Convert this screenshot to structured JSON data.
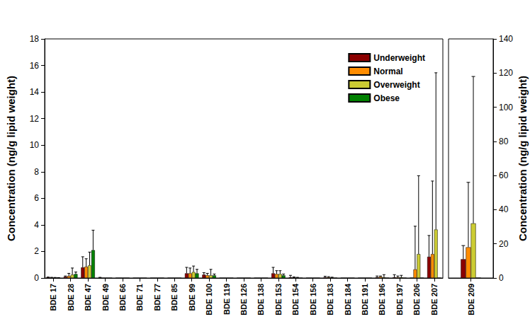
{
  "chart_data": [
    {
      "type": "bar",
      "ylabel": "Concentration (ng/g lipid weight)",
      "categories": [
        "BDE 17",
        "BDE 28",
        "BDE 47",
        "BDE 49",
        "BDE 66",
        "BDE 71",
        "BDE 77",
        "BDE 85",
        "BDE 99",
        "BDE 100",
        "BDE 119",
        "BDE 126",
        "BDE 138",
        "BDE 153",
        "BDE 154",
        "BDE 156",
        "BDE 183",
        "BDE 184",
        "BDE 191",
        "BDE 196",
        "BDE 197",
        "BDE 206",
        "BDE 207"
      ],
      "series": [
        {
          "name": "Underweight",
          "color": "#8B0000",
          "values": [
            0.05,
            0.1,
            0.8,
            0.03,
            0,
            0,
            0,
            0,
            0.35,
            0.25,
            0,
            0,
            0,
            0.35,
            0.05,
            0,
            0.05,
            0,
            0,
            0.05,
            0.05,
            0,
            1.6
          ],
          "errors": [
            0.02,
            0.05,
            0.8,
            0.02,
            0,
            0,
            0,
            0,
            0.45,
            0.15,
            0,
            0,
            0,
            0.45,
            0.15,
            0,
            0.08,
            0,
            0,
            0.1,
            0.2,
            0,
            1.6
          ]
        },
        {
          "name": "Normal",
          "color": "#FF8C00",
          "values": [
            0.03,
            0.15,
            0.85,
            0,
            0,
            0,
            0,
            0,
            0.35,
            0.2,
            0,
            0,
            0,
            0.3,
            0.03,
            0,
            0.05,
            0,
            0,
            0.1,
            0.05,
            0.65,
            1.8
          ],
          "errors": [
            0.02,
            0.2,
            0.6,
            0,
            0,
            0,
            0,
            0,
            0.4,
            0.15,
            0,
            0,
            0,
            0.25,
            0.05,
            0,
            0.05,
            0,
            0,
            0.05,
            0.1,
            3.25,
            5.5
          ]
        },
        {
          "name": "Overweight",
          "color": "#CCCC33",
          "values": [
            0.02,
            0.25,
            0.95,
            0,
            0,
            0,
            0,
            0,
            0.45,
            0.2,
            0,
            0,
            0,
            0.3,
            0.02,
            0,
            0.03,
            0,
            0,
            0.05,
            0.05,
            1.8,
            3.65
          ],
          "errors": [
            0.02,
            0.5,
            1.0,
            0,
            0,
            0,
            0,
            0,
            0.45,
            0.45,
            0,
            0,
            0,
            0.25,
            0.03,
            0,
            0.03,
            0,
            0,
            0.2,
            0.15,
            5.9,
            11.8
          ]
        },
        {
          "name": "Obese",
          "color": "#008000",
          "values": [
            0.02,
            0.3,
            2.1,
            0,
            0,
            0,
            0,
            0,
            0.35,
            0.2,
            0,
            0,
            0,
            0.2,
            0,
            0,
            0,
            0,
            0,
            0,
            0,
            0,
            0
          ],
          "errors": [
            0.01,
            0.15,
            1.5,
            0,
            0,
            0,
            0,
            0,
            0.3,
            0.1,
            0,
            0,
            0,
            0.1,
            0,
            0,
            0,
            0,
            0,
            0,
            0,
            0,
            0
          ]
        }
      ],
      "ylim": [
        0,
        18
      ],
      "yticks": [
        0,
        2,
        4,
        6,
        8,
        10,
        12,
        14,
        16,
        18
      ],
      "grid": false,
      "legend": "upper right"
    },
    {
      "type": "bar",
      "y2label": "Concentration (ng/g lipid weight)",
      "categories": [
        "BDE 209"
      ],
      "series": [
        {
          "name": "Underweight",
          "color": "#8B0000",
          "axis": "y2",
          "values": [
            11
          ],
          "errors": [
            8
          ]
        },
        {
          "name": "Normal",
          "color": "#FF8C00",
          "axis": "y2",
          "values": [
            18
          ],
          "errors": [
            38
          ]
        },
        {
          "name": "Overweight",
          "color": "#CCCC33",
          "axis": "y2",
          "values": [
            32
          ],
          "errors": [
            86
          ]
        },
        {
          "name": "Obese",
          "color": "#008000",
          "axis": "y2",
          "values": [
            0
          ],
          "errors": [
            0
          ]
        }
      ],
      "y2lim": [
        0,
        140
      ],
      "y2ticks": [
        0,
        20,
        40,
        60,
        80,
        100,
        120,
        140
      ],
      "grid": false
    }
  ]
}
